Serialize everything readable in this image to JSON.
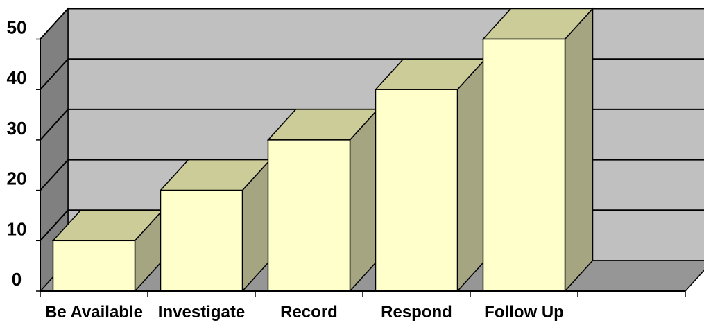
{
  "chart_data": {
    "type": "bar",
    "style": "3d-column",
    "categories": [
      "Be Available",
      "Investigate",
      "Record",
      "Respond",
      "Follow Up"
    ],
    "values": [
      10,
      20,
      30,
      40,
      50
    ],
    "ylim": [
      0,
      50
    ],
    "yticks": [
      "0",
      "10",
      "20",
      "30",
      "40",
      "50"
    ],
    "grid": true,
    "legend": "none",
    "colors": {
      "bar_front": "#FFFFCC",
      "bar_top": "#CCCC99",
      "bar_side": "#A5A582",
      "back_wall": "#C0C0C0",
      "side_wall": "#808080",
      "floor": "#969696",
      "outline": "#000000"
    }
  }
}
